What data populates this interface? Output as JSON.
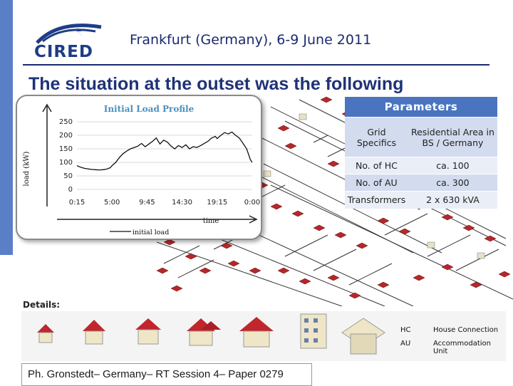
{
  "header": {
    "logo_text": "CIRED",
    "conference": "Frankfurt (Germany), 6-9 June 2011"
  },
  "slide_title": "The situation at the outset was the following",
  "chart_data": {
    "type": "line",
    "title": "Initial Load Profile",
    "xlabel": "time",
    "ylabel": "load (kW)",
    "ylim": [
      0,
      250
    ],
    "yticks": [
      0,
      50,
      100,
      150,
      200,
      250
    ],
    "xticks": [
      "0:15",
      "5:00",
      "9:45",
      "14:30",
      "19:15",
      "0:00"
    ],
    "series": [
      {
        "name": "initial load",
        "color": "#111111",
        "x_hours": [
          0.25,
          0.75,
          1.25,
          1.75,
          2.25,
          2.75,
          3.25,
          3.75,
          4.25,
          4.75,
          5.0,
          5.5,
          6.0,
          6.5,
          7.0,
          7.5,
          8.0,
          8.5,
          9.0,
          9.5,
          10.0,
          10.5,
          11.0,
          11.5,
          12.0,
          12.5,
          13.0,
          13.5,
          14.0,
          14.5,
          15.0,
          15.5,
          16.0,
          16.5,
          17.0,
          17.5,
          18.0,
          18.5,
          19.0,
          19.25,
          19.75,
          20.25,
          20.75,
          21.25,
          21.75,
          22.25,
          22.75,
          23.25,
          23.75,
          24.0
        ],
        "values": [
          88,
          82,
          78,
          76,
          74,
          73,
          72,
          73,
          75,
          80,
          88,
          100,
          118,
          132,
          142,
          150,
          155,
          160,
          170,
          158,
          168,
          178,
          190,
          168,
          182,
          175,
          160,
          150,
          162,
          155,
          165,
          150,
          158,
          155,
          162,
          170,
          178,
          190,
          196,
          188,
          200,
          210,
          205,
          212,
          200,
          190,
          170,
          150,
          110,
          100
        ]
      }
    ]
  },
  "parameters": {
    "header": "Parameters",
    "rows": [
      {
        "label": "Grid Specifics",
        "value": "Residential Area in BS / Germany"
      },
      {
        "label": "No. of HC",
        "value": "ca. 100"
      },
      {
        "label": "No. of AU",
        "value": "ca. 300"
      },
      {
        "label": "Transformers",
        "value": "2 x 630 kVA"
      }
    ]
  },
  "details": {
    "label": "Details:",
    "legend": [
      {
        "abbr": "HC",
        "desc": "House Connection"
      },
      {
        "abbr": "AU",
        "desc": "Accommodation Unit"
      }
    ]
  },
  "footer": "Ph. Gronstedt– Germany– RT Session 4– Paper 0279",
  "colors": {
    "accent_blue": "#4a74c0",
    "title_blue": "#1f3278",
    "roof_red": "#c0262c"
  }
}
